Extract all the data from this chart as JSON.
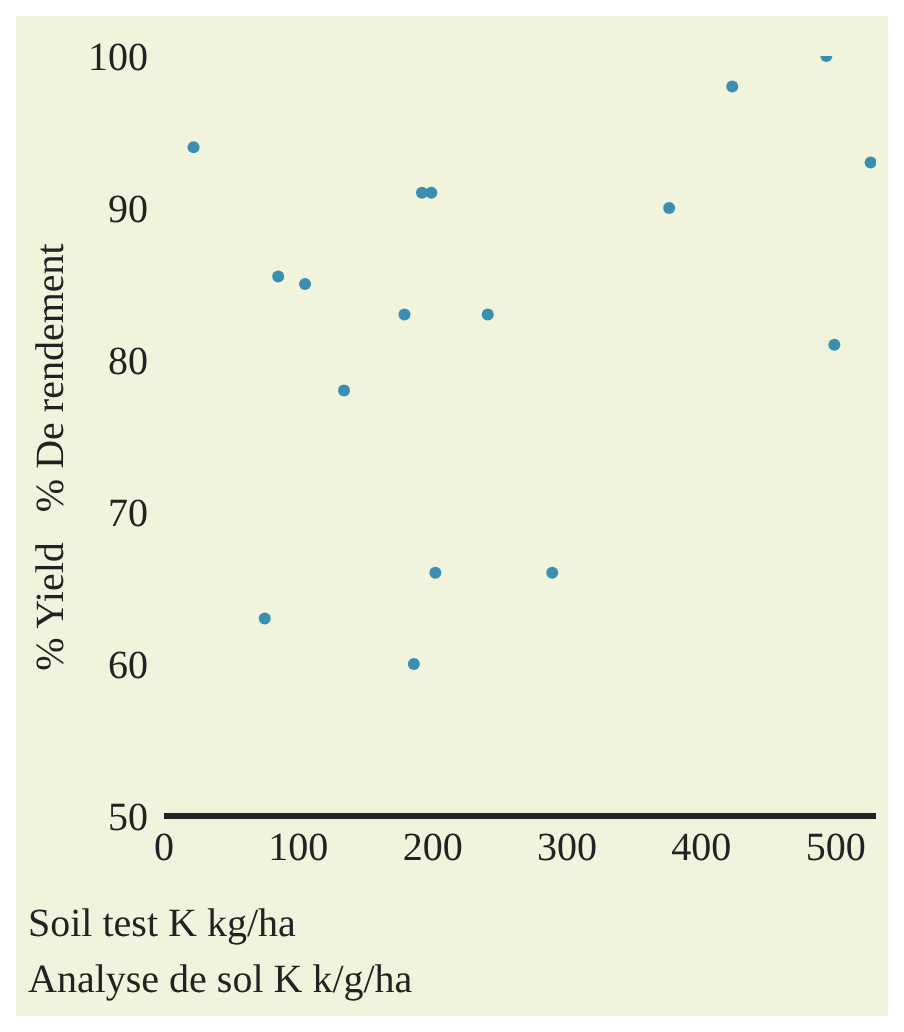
{
  "chart_data": {
    "type": "scatter",
    "xlabel": "Soil test K kg/ha\nAnalyse de sol K k/g/ha",
    "ylabel": "% Yield   % De rendement",
    "xlim": [
      0,
      530
    ],
    "xticks": [
      0,
      100,
      200,
      300,
      400,
      500
    ],
    "ylim": [
      50,
      100
    ],
    "yticks": [
      50,
      60,
      70,
      80,
      90,
      100
    ],
    "grid": false,
    "marker": "circle",
    "series": [
      {
        "color": "#3a8fb0",
        "x": [
          22,
          85,
          105,
          134,
          179,
          192,
          199,
          241,
          376,
          423,
          493,
          499,
          526,
          75,
          202,
          186,
          289
        ],
        "values": [
          94,
          85.5,
          85,
          78,
          83,
          91,
          91,
          83,
          90,
          98,
          100,
          81,
          93,
          63,
          66,
          60,
          66
        ]
      }
    ]
  }
}
